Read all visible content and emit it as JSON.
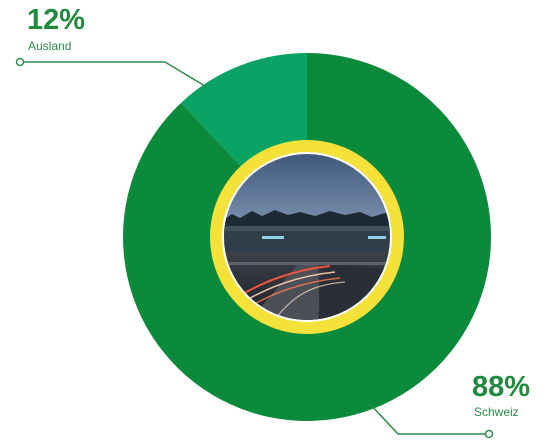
{
  "chart_data": {
    "type": "pie",
    "categories": [
      "Ausland",
      "Schweiz"
    ],
    "values": [
      12,
      88
    ],
    "value_labels": [
      "12%",
      "88%"
    ],
    "colors": {
      "Ausland": "#0aa363",
      "Schweiz": "#0b8a3b",
      "ring": "#f4e23a",
      "connector": "#2e8b4a"
    },
    "center_image": "photo-highway-building-at-dusk"
  }
}
